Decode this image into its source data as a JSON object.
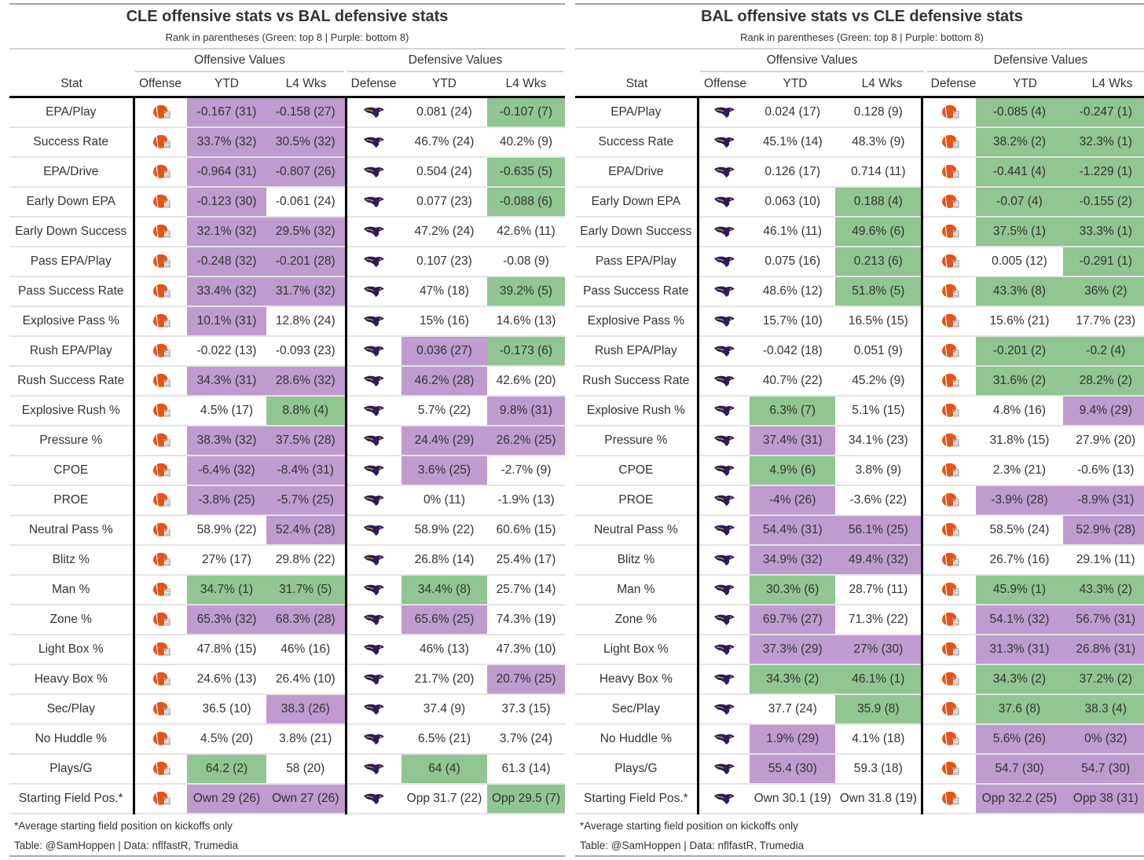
{
  "colors": {
    "green": "#91c591",
    "purple": "#bf9bcf",
    "browns_orange": "#e5531a",
    "ravens_purple": "#2b1a5c"
  },
  "headers": {
    "spanner_off": "Offensive Values",
    "spanner_def": "Defensive Values",
    "stat": "Stat",
    "offense": "Offense",
    "defense": "Defense",
    "ytd": "YTD",
    "l4": "L4 Wks"
  },
  "subtitle": "Rank in parentheses (Green: top 8 | Purple: bottom 8)",
  "footnote": "*Average starting field position on kickoffs only",
  "credit": "Table: @SamHoppen | Data: nflfastR, Trumedia",
  "chart_data": [
    {
      "type": "table",
      "title": "CLE offensive stats vs BAL defensive stats",
      "offense_team": "CLE",
      "defense_team": "BAL",
      "rows": [
        [
          "EPA/Play",
          "-0.167 (31)",
          "p",
          "-0.158 (27)",
          "p",
          "0.081 (24)",
          "",
          "-0.107 (7)",
          "g"
        ],
        [
          "Success Rate",
          "33.7% (32)",
          "p",
          "30.5% (32)",
          "p",
          "46.7% (24)",
          "",
          "40.2% (9)",
          ""
        ],
        [
          "EPA/Drive",
          "-0.964 (31)",
          "p",
          "-0.807 (26)",
          "p",
          "0.504 (24)",
          "",
          "-0.635 (5)",
          "g"
        ],
        [
          "Early Down EPA",
          "-0.123 (30)",
          "p",
          "-0.061 (24)",
          "",
          "0.077 (23)",
          "",
          "-0.088 (6)",
          "g"
        ],
        [
          "Early Down Success",
          "32.1% (32)",
          "p",
          "29.5% (32)",
          "p",
          "47.2% (24)",
          "",
          "42.6% (11)",
          ""
        ],
        [
          "Pass EPA/Play",
          "-0.248 (32)",
          "p",
          "-0.201 (28)",
          "p",
          "0.107 (23)",
          "",
          "-0.08 (9)",
          ""
        ],
        [
          "Pass Success Rate",
          "33.4% (32)",
          "p",
          "31.7% (32)",
          "p",
          "47% (18)",
          "",
          "39.2% (5)",
          "g"
        ],
        [
          "Explosive Pass %",
          "10.1% (31)",
          "p",
          "12.8% (24)",
          "",
          "15% (16)",
          "",
          "14.6% (13)",
          ""
        ],
        [
          "Rush EPA/Play",
          "-0.022 (13)",
          "",
          "-0.093 (23)",
          "",
          "0.036 (27)",
          "p",
          "-0.173 (6)",
          "g"
        ],
        [
          "Rush Success Rate",
          "34.3% (31)",
          "p",
          "28.6% (32)",
          "p",
          "46.2% (28)",
          "p",
          "42.6% (20)",
          ""
        ],
        [
          "Explosive Rush %",
          "4.5% (17)",
          "",
          "8.8% (4)",
          "g",
          "5.7% (22)",
          "",
          "9.8% (31)",
          "p"
        ],
        [
          "Pressure %",
          "38.3% (32)",
          "p",
          "37.5% (28)",
          "p",
          "24.4% (29)",
          "p",
          "26.2% (25)",
          "p"
        ],
        [
          "CPOE",
          "-6.4% (32)",
          "p",
          "-8.4% (31)",
          "p",
          "3.6% (25)",
          "p",
          "-2.7% (9)",
          ""
        ],
        [
          "PROE",
          "-3.8% (25)",
          "p",
          "-5.7% (25)",
          "p",
          "0% (11)",
          "",
          "-1.9% (13)",
          ""
        ],
        [
          "Neutral Pass %",
          "58.9% (22)",
          "",
          "52.4% (28)",
          "p",
          "58.9% (22)",
          "",
          "60.6% (15)",
          ""
        ],
        [
          "Blitz %",
          "27% (17)",
          "",
          "29.8% (22)",
          "",
          "26.8% (14)",
          "",
          "25.4% (17)",
          ""
        ],
        [
          "Man %",
          "34.7% (1)",
          "g",
          "31.7% (5)",
          "g",
          "34.4% (8)",
          "g",
          "25.7% (14)",
          ""
        ],
        [
          "Zone %",
          "65.3% (32)",
          "p",
          "68.3% (28)",
          "p",
          "65.6% (25)",
          "p",
          "74.3% (19)",
          ""
        ],
        [
          "Light Box %",
          "47.8% (15)",
          "",
          "46% (16)",
          "",
          "46% (13)",
          "",
          "47.3% (10)",
          ""
        ],
        [
          "Heavy Box %",
          "24.6% (13)",
          "",
          "26.4% (10)",
          "",
          "21.7% (20)",
          "",
          "20.7% (25)",
          "p"
        ],
        [
          "Sec/Play",
          "36.5 (10)",
          "",
          "38.3 (26)",
          "p",
          "37.4 (9)",
          "",
          "37.3 (15)",
          ""
        ],
        [
          "No Huddle %",
          "4.5% (20)",
          "",
          "3.8% (21)",
          "",
          "6.5% (21)",
          "",
          "3.7% (24)",
          ""
        ],
        [
          "Plays/G",
          "64.2 (2)",
          "g",
          "58 (20)",
          "",
          "64 (4)",
          "g",
          "61.3 (14)",
          ""
        ],
        [
          "Starting Field Pos.*",
          "Own 29 (26)",
          "p",
          "Own 27 (26)",
          "p",
          "Opp 31.7 (22)",
          "",
          "Opp 29.5 (7)",
          "g"
        ]
      ]
    },
    {
      "type": "table",
      "title": "BAL offensive stats vs CLE defensive stats",
      "offense_team": "BAL",
      "defense_team": "CLE",
      "rows": [
        [
          "EPA/Play",
          "0.024 (17)",
          "",
          "0.128 (9)",
          "",
          "-0.085 (4)",
          "g",
          "-0.247 (1)",
          "g"
        ],
        [
          "Success Rate",
          "45.1% (14)",
          "",
          "48.3% (9)",
          "",
          "38.2% (2)",
          "g",
          "32.3% (1)",
          "g"
        ],
        [
          "EPA/Drive",
          "0.126 (17)",
          "",
          "0.714 (11)",
          "",
          "-0.441 (4)",
          "g",
          "-1.229 (1)",
          "g"
        ],
        [
          "Early Down EPA",
          "0.063 (10)",
          "",
          "0.188 (4)",
          "g",
          "-0.07 (4)",
          "g",
          "-0.155 (2)",
          "g"
        ],
        [
          "Early Down Success",
          "46.1% (11)",
          "",
          "49.6% (6)",
          "g",
          "37.5% (1)",
          "g",
          "33.3% (1)",
          "g"
        ],
        [
          "Pass EPA/Play",
          "0.075 (16)",
          "",
          "0.213 (6)",
          "g",
          "0.005 (12)",
          "",
          "-0.291 (1)",
          "g"
        ],
        [
          "Pass Success Rate",
          "48.6% (12)",
          "",
          "51.8% (5)",
          "g",
          "43.3% (8)",
          "g",
          "36% (2)",
          "g"
        ],
        [
          "Explosive Pass %",
          "15.7% (10)",
          "",
          "16.5% (15)",
          "",
          "15.6% (21)",
          "",
          "17.7% (23)",
          ""
        ],
        [
          "Rush EPA/Play",
          "-0.042 (18)",
          "",
          "0.051 (9)",
          "",
          "-0.201 (2)",
          "g",
          "-0.2 (4)",
          "g"
        ],
        [
          "Rush Success Rate",
          "40.7% (22)",
          "",
          "45.2% (9)",
          "",
          "31.6% (2)",
          "g",
          "28.2% (2)",
          "g"
        ],
        [
          "Explosive Rush %",
          "6.3% (7)",
          "g",
          "5.1% (15)",
          "",
          "4.8% (16)",
          "",
          "9.4% (29)",
          "p"
        ],
        [
          "Pressure %",
          "37.4% (31)",
          "p",
          "34.1% (23)",
          "",
          "31.8% (15)",
          "",
          "27.9% (20)",
          ""
        ],
        [
          "CPOE",
          "4.9% (6)",
          "g",
          "3.8% (9)",
          "",
          "2.3% (21)",
          "",
          "-0.6% (13)",
          ""
        ],
        [
          "PROE",
          "-4% (26)",
          "p",
          "-3.6% (22)",
          "",
          "-3.9% (28)",
          "p",
          "-8.9% (31)",
          "p"
        ],
        [
          "Neutral Pass %",
          "54.4% (31)",
          "p",
          "56.1% (25)",
          "p",
          "58.5% (24)",
          "",
          "52.9% (28)",
          "p"
        ],
        [
          "Blitz %",
          "34.9% (32)",
          "p",
          "49.4% (32)",
          "p",
          "26.7% (16)",
          "",
          "29.1% (11)",
          ""
        ],
        [
          "Man %",
          "30.3% (6)",
          "g",
          "28.7% (11)",
          "",
          "45.9% (1)",
          "g",
          "43.3% (2)",
          "g"
        ],
        [
          "Zone %",
          "69.7% (27)",
          "p",
          "71.3% (22)",
          "",
          "54.1% (32)",
          "p",
          "56.7% (31)",
          "p"
        ],
        [
          "Light Box %",
          "37.3% (29)",
          "p",
          "27% (30)",
          "p",
          "31.3% (31)",
          "p",
          "26.8% (31)",
          "p"
        ],
        [
          "Heavy Box %",
          "34.3% (2)",
          "g",
          "46.1% (1)",
          "g",
          "34.3% (2)",
          "g",
          "37.2% (2)",
          "g"
        ],
        [
          "Sec/Play",
          "37.7 (24)",
          "",
          "35.9 (8)",
          "g",
          "37.6 (8)",
          "g",
          "38.3 (4)",
          "g"
        ],
        [
          "No Huddle %",
          "1.9% (29)",
          "p",
          "4.1% (18)",
          "",
          "5.6% (26)",
          "p",
          "0% (32)",
          "p"
        ],
        [
          "Plays/G",
          "55.4 (30)",
          "p",
          "59.3 (18)",
          "",
          "54.7 (30)",
          "p",
          "54.7 (30)",
          "p"
        ],
        [
          "Starting Field Pos.*",
          "Own 30.1 (19)",
          "",
          "Own 31.8 (19)",
          "",
          "Opp 32.2 (25)",
          "p",
          "Opp 38 (31)",
          "p"
        ]
      ]
    }
  ]
}
